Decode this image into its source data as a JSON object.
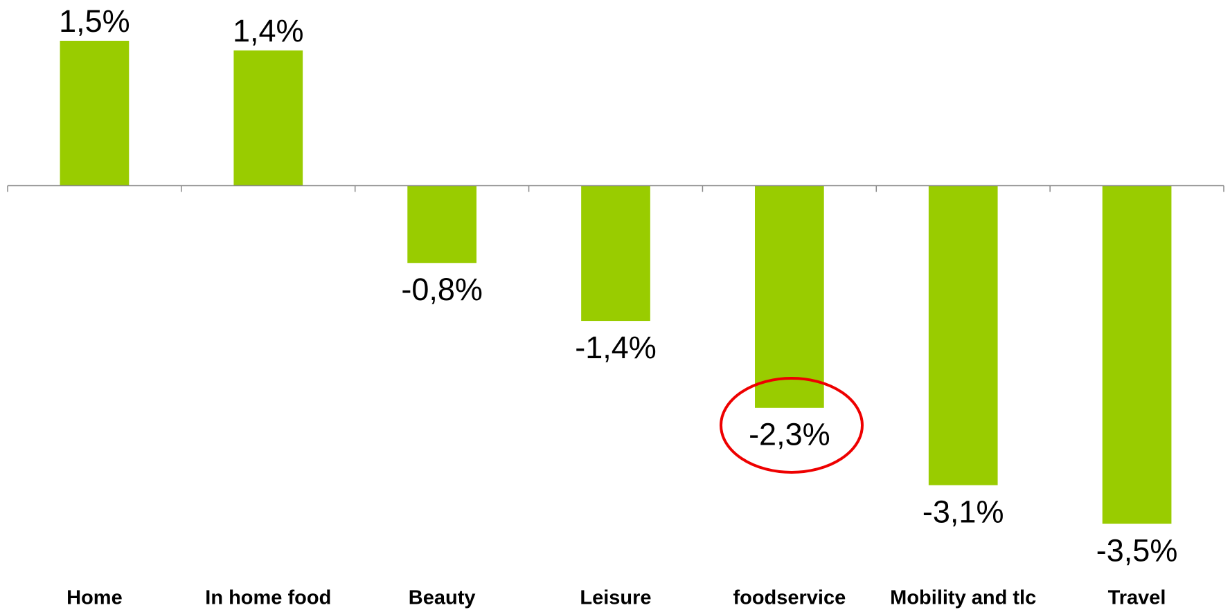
{
  "chart_data": {
    "type": "bar",
    "categories": [
      "Home",
      "In home food",
      "Beauty",
      "Leisure",
      "foodservice",
      "Mobility and tlc",
      "Travel"
    ],
    "values": [
      1.5,
      1.4,
      -0.8,
      -1.4,
      -2.3,
      -3.1,
      -3.5
    ],
    "value_labels": [
      "1,5%",
      "1,4%",
      "-0,8%",
      "-1,4%",
      "-2,3%",
      "-3,1%",
      "-3,5%"
    ],
    "color": "#99cc00"
  }
}
